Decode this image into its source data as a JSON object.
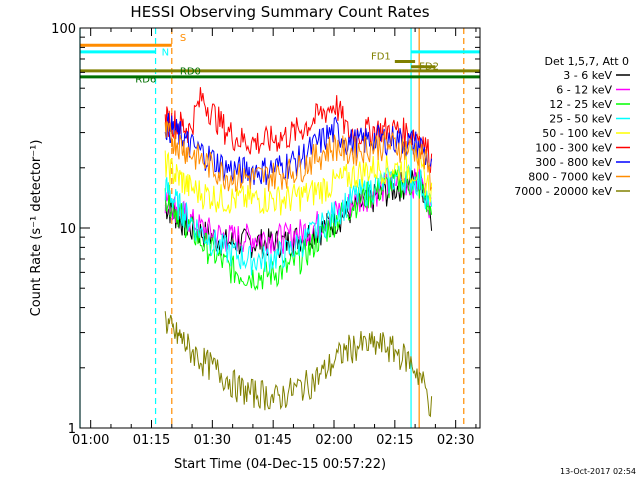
{
  "chart_data": {
    "type": "line",
    "title": "HESSI Observing Summary Count Rates",
    "xlabel": "Start Time (04-Dec-15 00:57:22)",
    "ylabel": "Count Rate (s⁻¹ detector⁻¹)",
    "y_scale": "log",
    "ylim": [
      1,
      100
    ],
    "xlim": [
      "00:57:22",
      "02:36:00"
    ],
    "x_ticks": [
      "01:00",
      "01:15",
      "01:30",
      "01:45",
      "02:00",
      "02:15",
      "02:30"
    ],
    "y_ticks": [
      "1",
      "10",
      "100"
    ],
    "legend_title": "Det 1,5,7, Att 0",
    "legend_position": "right",
    "x_minutes": [
      19,
      21,
      23,
      25,
      27,
      30,
      33,
      36,
      39,
      42,
      45,
      48,
      51,
      54,
      57,
      60,
      63,
      66,
      69,
      72,
      75,
      78,
      81,
      84,
      87,
      90
    ],
    "series": [
      {
        "name": "3 - 6 keV",
        "color": "#000000",
        "values": [
          null,
          13,
          12,
          11,
          10,
          9.5,
          9,
          8.5,
          8.5,
          8.5,
          8.5,
          8.5,
          8.5,
          9,
          9.5,
          10,
          11,
          12,
          13,
          14,
          15,
          16,
          17,
          17,
          11,
          null
        ]
      },
      {
        "name": "6 - 12 keV",
        "color": "#ff00ff",
        "values": [
          null,
          14,
          13,
          12,
          11,
          10,
          9.5,
          9,
          9,
          9,
          9,
          9,
          9,
          9.5,
          10,
          11,
          12,
          13,
          14,
          15,
          16,
          17,
          17,
          17,
          12,
          null
        ]
      },
      {
        "name": "12 - 25 keV",
        "color": "#00ff00",
        "values": [
          null,
          15,
          13,
          11.5,
          10,
          8.5,
          7.5,
          6.5,
          6,
          5.8,
          5.8,
          6,
          6.3,
          7,
          8,
          9.5,
          11,
          12.5,
          14,
          15,
          16,
          17,
          17,
          16,
          11,
          null
        ]
      },
      {
        "name": "25 - 50 keV",
        "color": "#00ffff",
        "values": [
          null,
          16,
          14,
          12.5,
          11,
          9.5,
          8.5,
          7.8,
          7.3,
          7,
          7,
          7.2,
          7.6,
          8.3,
          9.3,
          10.5,
          12,
          13.5,
          15,
          16,
          17,
          18,
          18,
          17,
          12,
          null
        ]
      },
      {
        "name": "50 - 100 keV",
        "color": "#ffff00",
        "values": [
          null,
          21,
          19,
          17.5,
          16,
          15,
          14.5,
          14,
          14,
          14,
          14,
          14,
          14,
          14.5,
          15,
          16,
          17,
          18,
          19,
          20,
          20,
          20,
          20,
          19,
          15,
          null
        ]
      },
      {
        "name": "100 - 300 keV",
        "color": "#ff0000",
        "values": [
          null,
          35,
          34,
          33,
          31,
          45,
          37,
          31,
          28,
          27,
          27,
          28,
          29,
          31,
          34,
          38,
          42,
          30,
          30,
          31,
          31,
          31,
          30,
          29,
          21,
          null
        ]
      },
      {
        "name": "300 - 800 keV",
        "color": "#0000ff",
        "values": [
          null,
          33,
          31,
          29,
          26,
          24,
          22,
          20,
          19.5,
          19.5,
          19.5,
          20,
          21,
          22,
          25,
          28,
          31,
          27,
          27,
          28,
          28,
          28,
          27,
          26,
          19,
          null
        ]
      },
      {
        "name": "800 - 7000 keV",
        "color": "#ff8c00",
        "values": [
          null,
          30,
          28,
          26,
          24,
          22,
          20,
          18.5,
          18,
          18,
          18,
          18.5,
          19,
          20,
          22,
          24,
          26,
          24,
          25,
          26,
          26,
          26,
          25,
          24,
          17,
          null
        ]
      },
      {
        "name": "7000 - 20000 keV",
        "color": "#808000",
        "values": [
          null,
          3.5,
          3,
          2.8,
          2.5,
          2.2,
          2,
          1.8,
          1.6,
          1.5,
          1.5,
          1.4,
          1.5,
          1.6,
          1.7,
          1.9,
          2.2,
          2.5,
          2.6,
          2.6,
          2.6,
          2.4,
          2.2,
          1.8,
          1.2,
          null
        ]
      }
    ],
    "segment_labels": {
      "s": "S",
      "n": "N",
      "rd0": "RD0",
      "rd6": "RD6",
      "fd1": "FD1",
      "fd2": "FD2"
    },
    "flag_bars": [
      {
        "label": "S",
        "color": "#ff8c00",
        "from": "00:57:22",
        "to": "01:20:00",
        "level": 82
      },
      {
        "label": "N",
        "color": "#00ffff",
        "from": "00:57:22",
        "to": "01:16:00",
        "level": 76
      },
      {
        "label": "",
        "color": "#00ffff",
        "from": "02:19:00",
        "to": "02:36:00",
        "level": 76
      },
      {
        "label": "",
        "color": "#808000",
        "from": "00:57:22",
        "to": "02:36:00",
        "level": 61
      },
      {
        "label": "RD6",
        "color": "#007000",
        "from": "00:57:22",
        "to": "01:20:00",
        "level": 57
      },
      {
        "label": "RD0",
        "color": "#007000",
        "from": "01:20:00",
        "to": "02:36:00",
        "level": 57
      },
      {
        "label": "FD1",
        "color": "#808000",
        "from": "02:15:00",
        "to": "02:20:00",
        "level": 68
      },
      {
        "label": "FD2",
        "color": "#808000",
        "from": "02:19:00",
        "to": "02:25:00",
        "level": 64
      }
    ],
    "vlines": [
      {
        "time": "00:57:22",
        "color": "#00ffff",
        "style": "solid"
      },
      {
        "time": "01:16:00",
        "color": "#00ffff",
        "style": "dashed"
      },
      {
        "time": "01:20:00",
        "color": "#ff8c00",
        "style": "dashed"
      },
      {
        "time": "02:19:00",
        "color": "#00ffff",
        "style": "solid"
      },
      {
        "time": "02:21:00",
        "color": "#ff8c00",
        "style": "solid"
      },
      {
        "time": "02:32:00",
        "color": "#ff8c00",
        "style": "dashed"
      }
    ],
    "grid": false
  },
  "footer": {
    "timestamp": "13-Oct-2017 02:54"
  }
}
